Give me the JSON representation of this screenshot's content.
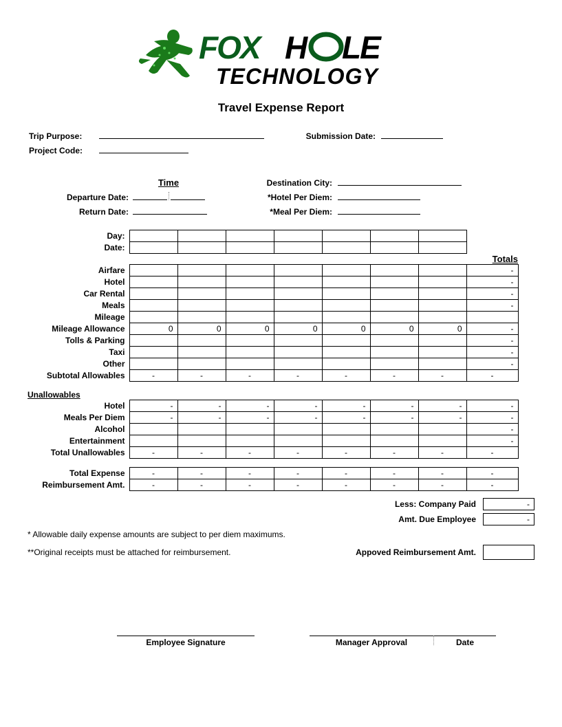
{
  "logo": {
    "company_line1_a": "FOX",
    "company_line1_b": "H",
    "company_line1_c": "LE",
    "company_line2": "TECHNOLOGY",
    "primary_color": "#0a5c1c",
    "accent_color": "#000000",
    "runner_color": "#2fa82f"
  },
  "title": "Travel Expense Report",
  "fields": {
    "trip_purpose": "Trip Purpose:",
    "project_code": "Project Code:",
    "submission_date": "Submission Date:",
    "departure_date": "Departure Date:",
    "return_date": "Return Date:",
    "time_header": "Time",
    "destination_city": "Destination City:",
    "hotel_per_diem": "*Hotel Per Diem:",
    "meal_per_diem": "*Meal Per Diem:",
    "day": "Day:",
    "date": "Date:"
  },
  "totals_header": "Totals",
  "expense_rows": [
    {
      "label": "Airfare",
      "cells": [
        "",
        "",
        "",
        "",
        "",
        "",
        ""
      ],
      "total": "-"
    },
    {
      "label": "Hotel",
      "cells": [
        "",
        "",
        "",
        "",
        "",
        "",
        ""
      ],
      "total": "-"
    },
    {
      "label": "Car Rental",
      "cells": [
        "",
        "",
        "",
        "",
        "",
        "",
        ""
      ],
      "total": "-"
    },
    {
      "label": "Meals",
      "cells": [
        "",
        "",
        "",
        "",
        "",
        "",
        ""
      ],
      "total": "-"
    },
    {
      "label": "Mileage",
      "cells": [
        "",
        "",
        "",
        "",
        "",
        "",
        ""
      ],
      "total": ""
    },
    {
      "label": "Mileage Allowance",
      "cells": [
        "0",
        "0",
        "0",
        "0",
        "0",
        "0",
        "0"
      ],
      "total": "-"
    },
    {
      "label": "Tolls & Parking",
      "cells": [
        "",
        "",
        "",
        "",
        "",
        "",
        ""
      ],
      "total": "-"
    },
    {
      "label": "Taxi",
      "cells": [
        "",
        "",
        "",
        "",
        "",
        "",
        ""
      ],
      "total": "-"
    },
    {
      "label": "Other",
      "cells": [
        "",
        "",
        "",
        "",
        "",
        "",
        ""
      ],
      "total": "-"
    }
  ],
  "subtotal_allowables": {
    "label": "Subtotal Allowables",
    "cells": [
      "-",
      "-",
      "-",
      "-",
      "-",
      "-",
      "-"
    ],
    "total": "-"
  },
  "unallowables_header": "Unallowables",
  "unallowable_rows": [
    {
      "label": "Hotel",
      "cells": [
        "-",
        "-",
        "-",
        "-",
        "-",
        "-",
        "-"
      ],
      "total": "-"
    },
    {
      "label": "Meals Per Diem",
      "cells": [
        "-",
        "-",
        "-",
        "-",
        "-",
        "-",
        "-"
      ],
      "total": "-"
    },
    {
      "label": "Alcohol",
      "cells": [
        "",
        "",
        "",
        "",
        "",
        "",
        ""
      ],
      "total": "-"
    },
    {
      "label": "Entertainment",
      "cells": [
        "",
        "",
        "",
        "",
        "",
        "",
        ""
      ],
      "total": "-"
    }
  ],
  "total_unallowables": {
    "label": "Total Unallowables",
    "cells": [
      "-",
      "-",
      "-",
      "-",
      "-",
      "-",
      "-"
    ],
    "total": "-"
  },
  "total_expense": {
    "label": "Total Expense",
    "cells": [
      "-",
      "-",
      "-",
      "-",
      "-",
      "-",
      "-"
    ],
    "total": "-"
  },
  "reimbursement_amt": {
    "label": "Reimbursement Amt.",
    "cells": [
      "-",
      "-",
      "-",
      "-",
      "-",
      "-",
      "-"
    ],
    "total": "-"
  },
  "summary": {
    "less_company_paid": {
      "label": "Less: Company Paid",
      "value": "-"
    },
    "amt_due_employee": {
      "label": "Amt. Due Employee",
      "value": "-"
    },
    "approved_reimbursement": {
      "label": "Appoved Reimbursement Amt.",
      "value": ""
    }
  },
  "notes": {
    "note1": "* Allowable daily expense amounts are subject to per diem maximums.",
    "note2": "**Original receipts must be attached for reimbursement."
  },
  "signatures": {
    "employee": "Employee Signature",
    "manager": "Manager Approval",
    "date": "Date"
  },
  "layout": {
    "label_col_width": 148,
    "data_col_width": 70,
    "total_col_width": 75,
    "num_data_cols": 7
  }
}
